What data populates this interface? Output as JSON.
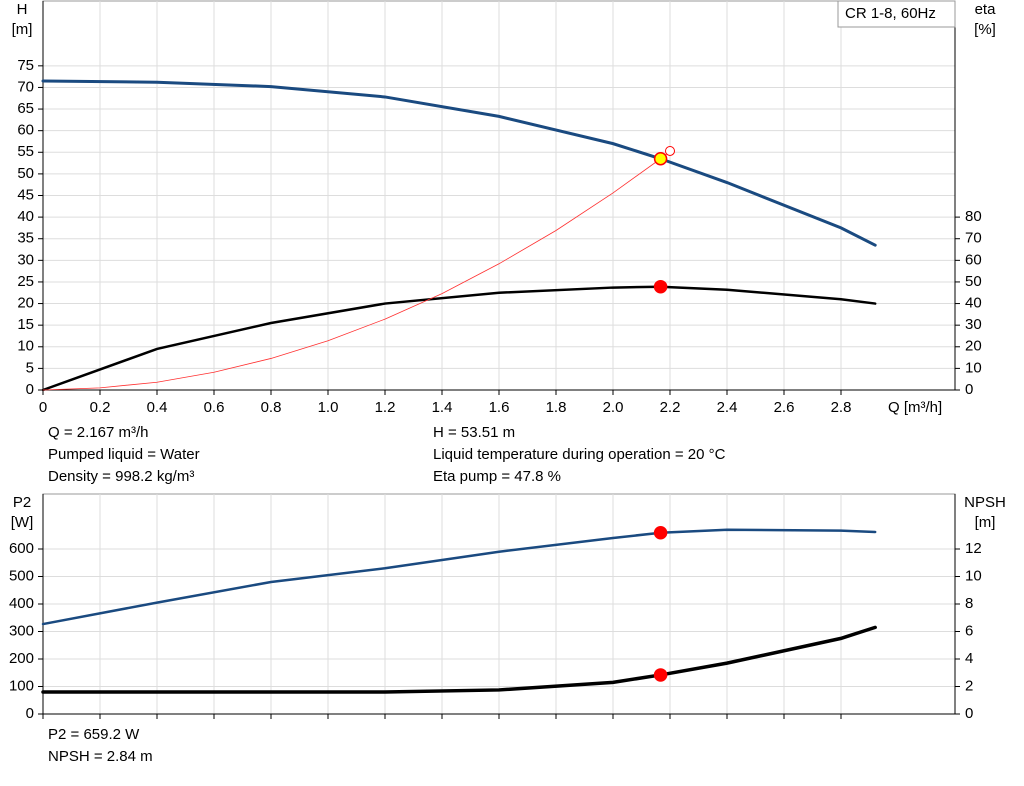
{
  "chart_data": [
    {
      "type": "line",
      "legend_label": "CR 1-8, 60Hz",
      "y_label": [
        "H",
        "[m]"
      ],
      "y2_label": [
        "eta",
        "[%]"
      ],
      "x_label": "Q [m³/h]",
      "xlim": [
        0,
        3.2
      ],
      "xticks": [
        0,
        0.2,
        0.4,
        0.6,
        0.8,
        {
          "value": 1,
          "label": "1.0"
        },
        1.2,
        1.4,
        1.6,
        1.8,
        {
          "value": 2,
          "label": "2.0"
        },
        2.2,
        2.4,
        2.6,
        2.8
      ],
      "ylim": [
        0,
        90
      ],
      "yticks": [
        0,
        5,
        10,
        15,
        20,
        25,
        30,
        35,
        40,
        45,
        50,
        55,
        60,
        65,
        70,
        75
      ],
      "y2lim": [
        0,
        180
      ],
      "y2ticks": [
        0,
        10,
        20,
        30,
        40,
        50,
        60,
        70,
        80
      ],
      "show_xtick_labels": true,
      "grid": true,
      "series": [
        {
          "color": "#1a4a80",
          "width": 3,
          "axis": "y",
          "x": [
            0,
            0.4,
            0.8,
            1.2,
            1.6,
            2.0,
            2.167,
            2.4,
            2.8,
            2.92
          ],
          "values": [
            71.5,
            71.2,
            70.2,
            67.8,
            63.3,
            57,
            53.5,
            48,
            37.5,
            33.5
          ]
        },
        {
          "color": "#000000",
          "width": 2.5,
          "axis": "y2",
          "x": [
            0,
            0.4,
            0.8,
            1.2,
            1.6,
            2.0,
            2.167,
            2.4,
            2.8,
            2.92
          ],
          "values": [
            0,
            19,
            31,
            40,
            45,
            47.4,
            47.8,
            46.4,
            42,
            40
          ]
        },
        {
          "color": "#ff3030",
          "width": 0.8,
          "axis": "y",
          "x": [
            0,
            0.2,
            0.4,
            0.6,
            0.8,
            1.0,
            1.2,
            1.4,
            1.6,
            1.8,
            2.0,
            2.167,
            2.2
          ],
          "values": [
            0,
            0.5,
            1.8,
            4.1,
            7.3,
            11.4,
            16.4,
            22.3,
            29.2,
            36.9,
            45.6,
            53.5,
            55.2
          ]
        }
      ],
      "points": [
        {
          "x": 2.167,
          "value": 53.51,
          "color": "#ffff00",
          "axis": "y",
          "filled": true
        },
        {
          "x": 2.167,
          "value": 47.8,
          "color": "#ff0000",
          "axis": "y2",
          "filled": true
        },
        {
          "x": 2.2,
          "value": 55.3,
          "color": "#ff0000",
          "axis": "y",
          "filled": false
        }
      ],
      "notes": [
        [
          "Q = 2.167 m³/h",
          "Pumped liquid = Water",
          "Density = 998.2 kg/m³"
        ],
        [
          "H = 53.51 m",
          "Liquid temperature during operation = 20 °C",
          "Eta pump = 47.8 %"
        ]
      ]
    },
    {
      "type": "line",
      "y_label": [
        "P2",
        "[W]"
      ],
      "y2_label": [
        "NPSH",
        "[m]"
      ],
      "xlim": [
        0,
        3.2
      ],
      "xticks": [
        0,
        0.2,
        0.4,
        0.6,
        0.8,
        1,
        1.2,
        1.4,
        1.6,
        1.8,
        2,
        2.2,
        2.4,
        2.6,
        2.8
      ],
      "ylim": [
        0,
        800
      ],
      "yticks": [
        0,
        100,
        200,
        300,
        400,
        500,
        600
      ],
      "y2lim": [
        0,
        16
      ],
      "y2ticks": [
        0,
        2,
        4,
        6,
        8,
        10,
        12
      ],
      "show_xtick_labels": false,
      "grid": true,
      "series": [
        {
          "color": "#1a4a80",
          "width": 2.5,
          "axis": "y",
          "x": [
            0,
            0.4,
            0.8,
            1.2,
            1.6,
            2.0,
            2.167,
            2.4,
            2.8,
            2.92
          ],
          "values": [
            327,
            405,
            480,
            530,
            590,
            640,
            659.2,
            670,
            667,
            662
          ]
        },
        {
          "color": "#000000",
          "width": 3.5,
          "axis": "y2",
          "x": [
            0,
            0.4,
            0.8,
            1.2,
            1.6,
            2.0,
            2.167,
            2.4,
            2.8,
            2.92
          ],
          "values": [
            1.6,
            1.6,
            1.6,
            1.6,
            1.75,
            2.3,
            2.84,
            3.7,
            5.5,
            6.3
          ]
        }
      ],
      "points": [
        {
          "x": 2.167,
          "value": 659.2,
          "color": "#ff0000",
          "axis": "y",
          "filled": true
        },
        {
          "x": 2.167,
          "value": 2.84,
          "color": "#ff0000",
          "axis": "y2",
          "filled": true
        }
      ],
      "notes": [
        [
          "P2 = 659.2 W",
          "NPSH = 2.84 m"
        ]
      ]
    }
  ]
}
